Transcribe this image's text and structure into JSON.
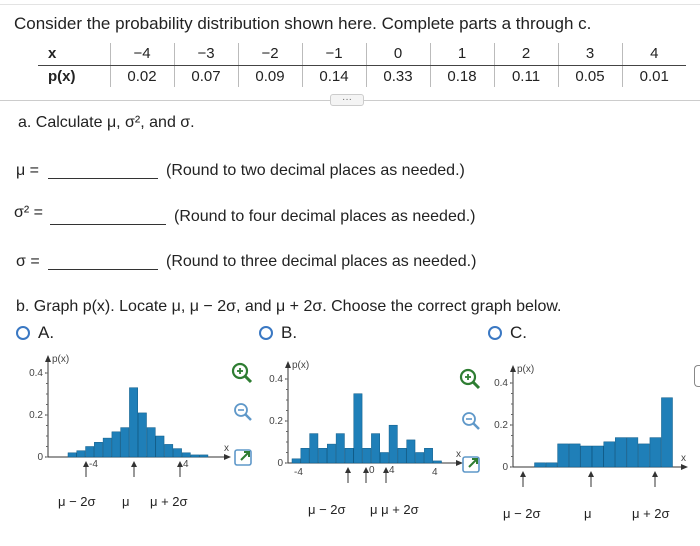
{
  "question": {
    "prompt": "Consider the probability distribution shown here. Complete parts a through c.",
    "table": {
      "x_label": "x",
      "p_label": "p(x)",
      "x_values": [
        "−4",
        "−3",
        "−2",
        "−1",
        "0",
        "1",
        "2",
        "3",
        "4"
      ],
      "p_values": [
        "0.02",
        "0.07",
        "0.09",
        "0.14",
        "0.33",
        "0.18",
        "0.11",
        "0.05",
        "0.01"
      ]
    }
  },
  "part_a": {
    "label": "a. Calculate μ, σ², and σ.",
    "mu_label": "μ =",
    "mu_hint": "(Round to two decimal places as needed.)",
    "var_label": "σ² =",
    "var_hint": "(Round to four decimal places as needed.)",
    "sd_label": "σ =",
    "sd_hint": "(Round to three decimal places as needed.)"
  },
  "part_b": {
    "label": "b. Graph p(x). Locate μ, μ − 2σ, and μ + 2σ. Choose the correct graph below.",
    "options": [
      {
        "label": "A.",
        "bottom": [
          "μ − 2σ",
          "μ",
          "μ + 2σ"
        ]
      },
      {
        "label": "B.",
        "bottom": [
          "μ − 2σ",
          "μ μ + 2σ"
        ]
      },
      {
        "label": "C.",
        "bottom": [
          "μ − 2σ",
          "μ",
          "μ + 2σ"
        ]
      }
    ]
  },
  "chart_data": [
    {
      "type": "bar",
      "ylabel": "p(x)",
      "xlabel": "x",
      "ylim": [
        0,
        0.4
      ],
      "yticks": [
        "0.4",
        "0.2",
        "0"
      ],
      "x": [
        -4.5,
        -4,
        -3.5,
        -3,
        -2.5,
        -2,
        -1.5,
        -1,
        -0.5,
        0,
        0.5,
        1,
        1.5,
        2,
        2.5,
        3,
        3.5,
        4
      ],
      "values": [
        0.02,
        0.03,
        0.05,
        0.07,
        0.09,
        0.12,
        0.14,
        0.33,
        0.21,
        0.14,
        0.1,
        0.06,
        0.04,
        0.02,
        0.01,
        0.01,
        0.0,
        0.0
      ],
      "arrow_labels": [
        "-4",
        "",
        "4"
      ]
    },
    {
      "type": "bar",
      "ylabel": "p(x)",
      "xlabel": "x",
      "ylim": [
        0,
        0.4
      ],
      "yticks": [
        "0.4",
        "0.2",
        "0"
      ],
      "values": [
        0.02,
        0.07,
        0.14,
        0.07,
        0.09,
        0.14,
        0.07,
        0.33,
        0.07,
        0.14,
        0.05,
        0.18,
        0.07,
        0.11,
        0.05,
        0.07,
        0.01
      ],
      "arrow_labels": [
        "",
        "0",
        "4"
      ],
      "tick_labels": [
        "-4",
        "4"
      ]
    },
    {
      "type": "bar",
      "ylabel": "p(x)",
      "xlabel": "x",
      "ylim": [
        0,
        0.4
      ],
      "yticks": [
        "0.4",
        "0.2",
        "0"
      ],
      "values": [
        0.0,
        0.02,
        0.02,
        0.11,
        0.11,
        0.1,
        0.1,
        0.12,
        0.14,
        0.14,
        0.11,
        0.14,
        0.33
      ],
      "arrow_labels": [
        "",
        "",
        ""
      ]
    }
  ]
}
